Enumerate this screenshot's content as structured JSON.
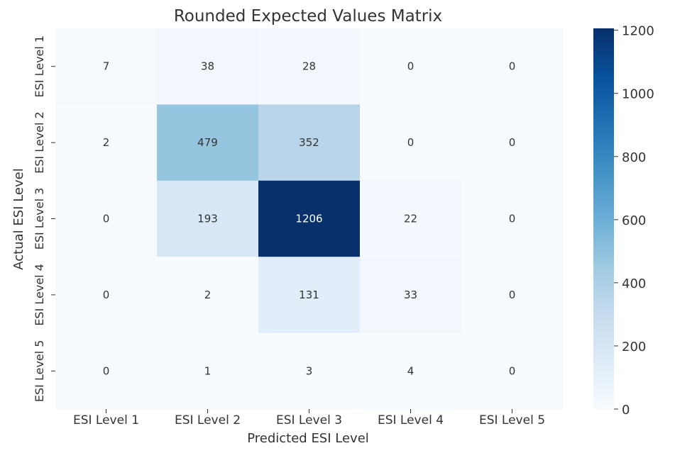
{
  "chart_data": {
    "type": "heatmap",
    "title": "Rounded Expected Values Matrix",
    "xlabel": "Predicted ESI Level",
    "ylabel": "Actual ESI Level",
    "x_categories": [
      "ESI Level 1",
      "ESI Level 2",
      "ESI Level 3",
      "ESI Level 4",
      "ESI Level 5"
    ],
    "y_categories": [
      "ESI Level 1",
      "ESI Level 2",
      "ESI Level 3",
      "ESI Level 4",
      "ESI Level 5"
    ],
    "values": [
      [
        7,
        38,
        28,
        0,
        0
      ],
      [
        2,
        479,
        352,
        0,
        0
      ],
      [
        0,
        193,
        1206,
        22,
        0
      ],
      [
        0,
        2,
        131,
        33,
        0
      ],
      [
        0,
        1,
        3,
        4,
        0
      ]
    ],
    "colormap": "Blues",
    "vmin": 0,
    "vmax": 1206,
    "colorbar_ticks": [
      0,
      200,
      400,
      600,
      800,
      1000,
      1200
    ],
    "colorbar_placement": "right",
    "grid": false
  }
}
